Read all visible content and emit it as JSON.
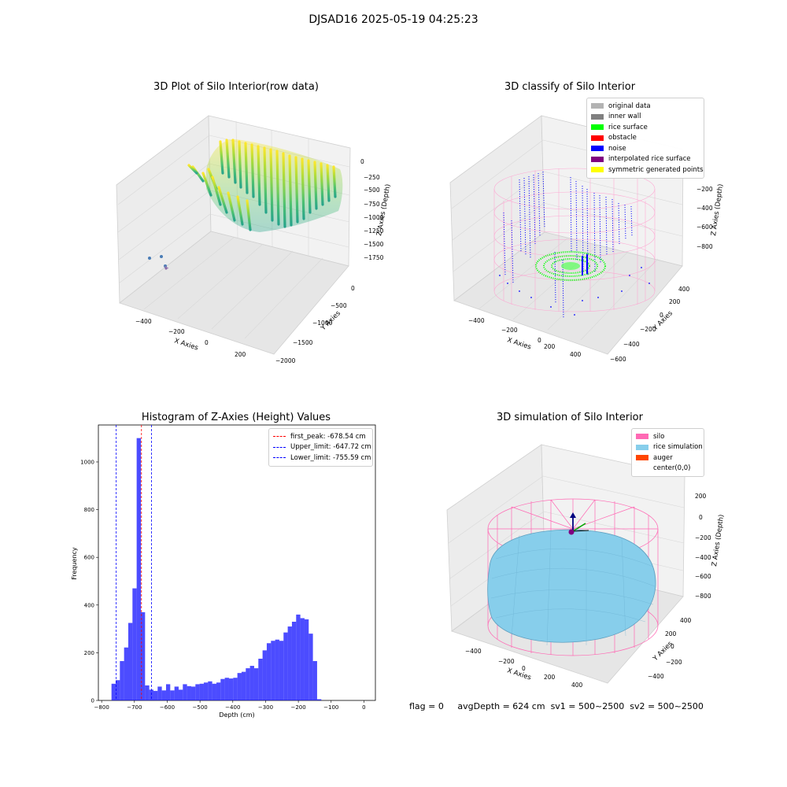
{
  "suptitle": "DJSAD16 2025-05-19 04:25:23",
  "panels": {
    "raw": {
      "title": "3D Plot of Silo Interior(row data)",
      "xlabel": "X Axies",
      "ylabel": "Y Axies",
      "zlabel": "Z Axies (Depth)",
      "xticks": [
        "−400",
        "−200",
        "0",
        "200"
      ],
      "yticks": [
        "−2000",
        "−1500",
        "−1000",
        "−500",
        "0"
      ],
      "zticks": [
        "0",
        "−250",
        "−500",
        "−750",
        "−1000",
        "−1250",
        "−1500",
        "−1750"
      ]
    },
    "classify": {
      "title": "3D classify of Silo Interior",
      "xlabel": "X Axies",
      "ylabel": "Y Axies",
      "zlabel": "Z Axies (Depth)",
      "xticks": [
        "−400",
        "−200",
        "0",
        "200",
        "400"
      ],
      "yticks": [
        "−600",
        "−400",
        "−200",
        "0",
        "200",
        "400"
      ],
      "zticks": [
        "0",
        "−200",
        "−400",
        "−600",
        "−800"
      ],
      "legend": [
        {
          "label": "original data",
          "color": "#b3b3b3"
        },
        {
          "label": "inner wall",
          "color": "#808080"
        },
        {
          "label": "rice surface",
          "color": "#00ff00"
        },
        {
          "label": "obstacle",
          "color": "#ff0000"
        },
        {
          "label": "noise",
          "color": "#0000ff"
        },
        {
          "label": "interpolated rice surface",
          "color": "#800080"
        },
        {
          "label": "symmetric generated points",
          "color": "#ffff00"
        }
      ]
    },
    "simulation": {
      "title": "3D simulation of Silo Interior",
      "xlabel": "X Axies",
      "ylabel": "Y Axies",
      "zlabel": "Z Axies (Depth)",
      "xticks": [
        "−400",
        "−200",
        "0",
        "200",
        "400"
      ],
      "yticks": [
        "−400",
        "−200",
        "0",
        "200",
        "400"
      ],
      "zticks": [
        "200",
        "0",
        "−200",
        "−400",
        "−600",
        "−800"
      ],
      "legend": [
        {
          "label": "silo",
          "color": "#ff69b4"
        },
        {
          "label": "rice simulation",
          "color": "#87ceeb"
        },
        {
          "label": "auger",
          "color": "#ff4500"
        },
        {
          "label": "center(0,0)",
          "color": "#ffffff"
        }
      ]
    }
  },
  "chart_data": {
    "type": "bar",
    "title": "Histogram of Z-Axies (Height) Values",
    "xlabel": "Depth (cm)",
    "ylabel": "Frequency",
    "xlim": [
      -810,
      35
    ],
    "ylim": [
      0,
      1155
    ],
    "xticks": [
      -800,
      -700,
      -600,
      -500,
      -400,
      -300,
      -200,
      -100,
      0
    ],
    "yticks": [
      0,
      200,
      400,
      600,
      800,
      1000
    ],
    "bin_edges_start": -770,
    "bin_width": 12.8,
    "values": [
      70,
      85,
      165,
      222,
      325,
      470,
      1100,
      370,
      63,
      45,
      40,
      58,
      42,
      68,
      42,
      58,
      45,
      68,
      60,
      58,
      68,
      70,
      75,
      80,
      70,
      75,
      90,
      95,
      92,
      95,
      115,
      120,
      135,
      145,
      135,
      175,
      210,
      240,
      250,
      255,
      250,
      285,
      310,
      330,
      360,
      345,
      340,
      280,
      165,
      5
    ],
    "bar_color": "#0000ff",
    "vlines": [
      {
        "label": "first_peak: -678.54 cm",
        "x": -678.54,
        "color": "#ff0000"
      },
      {
        "label": "Upper_limit: -647.72 cm",
        "x": -647.72,
        "color": "#0000ff"
      },
      {
        "label": "Lower_limit: -755.59 cm",
        "x": -755.59,
        "color": "#0000ff"
      }
    ],
    "legend_position": "upper right"
  },
  "footer": {
    "flag": "flag = 0",
    "avg_depth": "avgDepth = 624 cm",
    "sv1": "sv1 = 500~2500",
    "sv2": "sv2 = 500~2500"
  }
}
